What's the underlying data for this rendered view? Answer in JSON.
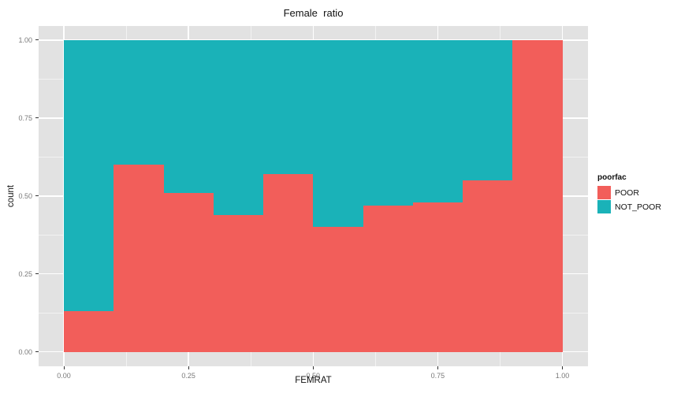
{
  "chart": {
    "title": "Female  ratio",
    "xlabel": "FEMRAT",
    "ylabel": "count"
  },
  "legend": {
    "title": "poorfac",
    "entries": [
      "POOR",
      "NOT_POOR"
    ]
  },
  "colors": {
    "poor": "#F25E5A",
    "not_poor": "#1AB2B8",
    "panel_background": "#E2E2E2",
    "grid": "#FFFFFF",
    "axis_text": "#7A7A7A"
  },
  "chart_data": {
    "type": "bar",
    "subtype": "stacked-filled-histogram",
    "title": "Female  ratio",
    "xlabel": "FEMRAT",
    "ylabel": "count",
    "xlim": [
      0,
      1
    ],
    "ylim": [
      0,
      1
    ],
    "grid": true,
    "legend_position": "right",
    "legend_title": "poorfac",
    "bin_start": 0.0,
    "bin_width": 0.1,
    "x_tick_values": [
      0,
      0.25,
      0.5,
      0.75,
      1
    ],
    "x_tick_labels": [
      "0.00",
      "0.25",
      "0.50",
      "0.75",
      "1.00"
    ],
    "y_tick_values": [
      0,
      0.25,
      0.5,
      0.75,
      1
    ],
    "y_tick_labels": [
      "0.00",
      "0.25",
      "0.50",
      "0.75",
      "1.00"
    ],
    "minor_tick_step": 0.125,
    "series": [
      {
        "name": "POOR",
        "color": "#F25E5A",
        "values": [
          0.13,
          0.6,
          0.51,
          0.44,
          0.57,
          0.4,
          0.47,
          0.48,
          0.55,
          1.0
        ]
      },
      {
        "name": "NOT_POOR",
        "color": "#1AB2B8",
        "values": [
          0.87,
          0.4,
          0.49,
          0.56,
          0.43,
          0.6,
          0.53,
          0.52,
          0.45,
          0.0
        ]
      }
    ]
  }
}
